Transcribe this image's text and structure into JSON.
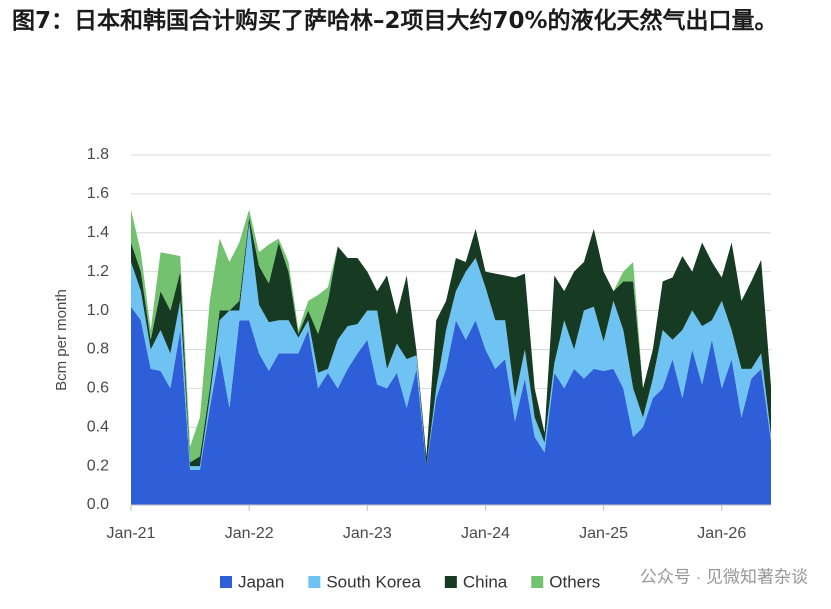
{
  "chart_data": {
    "type": "stacked_area",
    "title": "图7：日本和韩国合计购买了萨哈林–2项目大约70%的液化天然气出口量。",
    "y_label": "Bcm per month",
    "watermark": "公众号 · 见微知著杂谈",
    "categories": [
      "Jan-21",
      null,
      null,
      null,
      null,
      null,
      null,
      null,
      null,
      null,
      null,
      null,
      "Jan-22",
      null,
      null,
      null,
      null,
      null,
      null,
      null,
      null,
      null,
      null,
      null,
      "Jan-23",
      null,
      null,
      null,
      null,
      null,
      null,
      null,
      null,
      null,
      null,
      null,
      "Jan-24",
      null,
      null,
      null,
      null,
      null,
      null,
      null,
      null,
      null,
      null,
      null,
      "Jan-25",
      null,
      null,
      null,
      null,
      null,
      null,
      null,
      null,
      null,
      null,
      null,
      "Jan-26",
      null,
      null,
      null,
      null,
      null
    ],
    "ylim": [
      0,
      1.8
    ],
    "yticks": [
      {
        "value": 0,
        "label": "0.0"
      },
      0.2,
      0.4,
      0.6,
      0.8,
      {
        "value": 1,
        "label": "1.0"
      },
      1.2,
      1.4,
      1.6,
      1.8
    ],
    "grid": true,
    "legend": "bottom",
    "series": [
      {
        "name": "Japan",
        "color": "#2f5fd8",
        "values": [
          1.02,
          0.95,
          0.7,
          0.69,
          0.6,
          0.9,
          0.18,
          0.18,
          0.5,
          0.78,
          0.5,
          0.95,
          0.95,
          0.78,
          0.69,
          0.78,
          0.78,
          0.78,
          0.9,
          0.6,
          0.68,
          0.6,
          0.7,
          0.78,
          0.85,
          0.62,
          0.6,
          0.68,
          0.5,
          0.7,
          0.2,
          0.55,
          0.7,
          0.95,
          0.85,
          0.95,
          0.8,
          0.7,
          0.75,
          0.43,
          0.65,
          0.35,
          0.27,
          0.68,
          0.6,
          0.7,
          0.65,
          0.7,
          0.69,
          0.7,
          0.6,
          0.35,
          0.4,
          0.55,
          0.6,
          0.75,
          0.55,
          0.8,
          0.62,
          0.85,
          0.6,
          0.75,
          0.45,
          0.65,
          0.7,
          0.33
        ]
      },
      {
        "name": "South Korea",
        "color": "#6ec3f2",
        "values": [
          0.23,
          0.15,
          0.1,
          0.21,
          0.18,
          0.15,
          0.02,
          0.02,
          0.05,
          0.17,
          0.5,
          0.05,
          0.5,
          0.25,
          0.25,
          0.17,
          0.17,
          0.08,
          0.05,
          0.08,
          0.02,
          0.25,
          0.22,
          0.15,
          0.15,
          0.38,
          0.1,
          0.15,
          0.25,
          0.07,
          0.0,
          0.05,
          0.2,
          0.15,
          0.35,
          0.32,
          0.32,
          0.25,
          0.2,
          0.12,
          0.15,
          0.1,
          0.05,
          0.05,
          0.35,
          0.1,
          0.35,
          0.32,
          0.15,
          0.35,
          0.3,
          0.25,
          0.05,
          0.1,
          0.3,
          0.1,
          0.35,
          0.2,
          0.3,
          0.1,
          0.45,
          0.15,
          0.25,
          0.05,
          0.08,
          0.03
        ]
      },
      {
        "name": "China",
        "color": "#163a22",
        "values": [
          0.1,
          0.1,
          0.05,
          0.2,
          0.22,
          0.15,
          0.02,
          0.05,
          0.05,
          0.05,
          0.0,
          0.05,
          0.03,
          0.2,
          0.2,
          0.4,
          0.25,
          0.02,
          0.05,
          0.2,
          0.35,
          0.48,
          0.35,
          0.34,
          0.2,
          0.1,
          0.48,
          0.15,
          0.43,
          0.02,
          0.05,
          0.35,
          0.15,
          0.17,
          0.05,
          0.15,
          0.08,
          0.24,
          0.23,
          0.62,
          0.39,
          0.15,
          0.05,
          0.45,
          0.15,
          0.4,
          0.25,
          0.4,
          0.36,
          0.05,
          0.25,
          0.55,
          0.15,
          0.15,
          0.25,
          0.32,
          0.38,
          0.2,
          0.43,
          0.3,
          0.12,
          0.45,
          0.35,
          0.45,
          0.48,
          0.25
        ]
      },
      {
        "name": "Others",
        "color": "#72c26f",
        "values": [
          0.17,
          0.1,
          0.05,
          0.2,
          0.29,
          0.08,
          0.08,
          0.2,
          0.45,
          0.37,
          0.25,
          0.3,
          0.04,
          0.07,
          0.2,
          0.02,
          0.05,
          0.02,
          0.05,
          0.2,
          0.07,
          0,
          0,
          0,
          0,
          0,
          0,
          0,
          0,
          0,
          0,
          0,
          0,
          0,
          0,
          0,
          0,
          0,
          0,
          0,
          0,
          0,
          0,
          0,
          0,
          0,
          0,
          0,
          0,
          0,
          0.05,
          0.1,
          0,
          0,
          0,
          0,
          0,
          0,
          0,
          0,
          0,
          0,
          0,
          0,
          0,
          0
        ]
      }
    ]
  }
}
